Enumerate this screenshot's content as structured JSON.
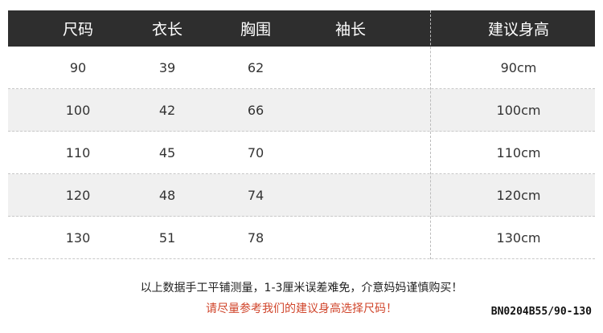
{
  "headers": [
    "尺码",
    "衣长",
    "胸围",
    "袖长",
    "建议身高"
  ],
  "rows": [
    [
      "90",
      "39",
      "62",
      "",
      "90cm"
    ],
    [
      "100",
      "42",
      "66",
      "",
      "100cm"
    ],
    [
      "110",
      "45",
      "70",
      "",
      "110cm"
    ],
    [
      "120",
      "48",
      "74",
      "",
      "120cm"
    ],
    [
      "130",
      "51",
      "78",
      "",
      "130cm"
    ]
  ],
  "note": "以上数据手工平铺测量，1-3厘米误差难免，介意妈妈谨慎购买！",
  "advice": "请尽量参考我们的建议身高选择尺码！",
  "product_code": "BN0204B55/90-130",
  "colors": {
    "header_bg": "#2e2e2e",
    "alt_row": "#f0f0f0",
    "advice_text": "#d0452b"
  }
}
